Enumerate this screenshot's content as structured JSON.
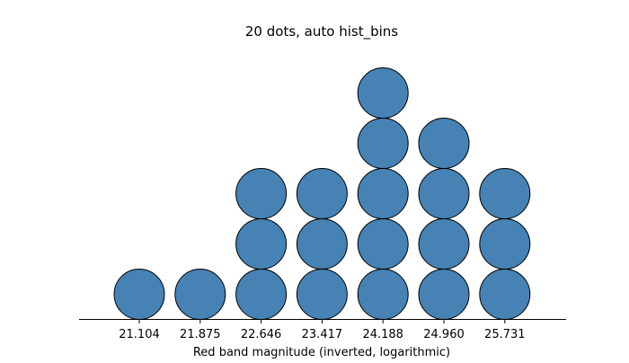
{
  "chart_data": {
    "type": "dot",
    "title": "20 dots, auto hist_bins",
    "xlabel": "Red band magnitude (inverted, logarithmic)",
    "ylabel": "",
    "bins": [
      "21.104",
      "21.875",
      "22.646",
      "23.417",
      "24.188",
      "24.960",
      "25.731"
    ],
    "counts": [
      1,
      1,
      3,
      3,
      5,
      4,
      3
    ],
    "total_dots": 20,
    "grid": false,
    "legend": "none",
    "colors": {
      "dot_fill": "#4682b4",
      "dot_edge": "#000000",
      "axis": "#000000"
    }
  }
}
